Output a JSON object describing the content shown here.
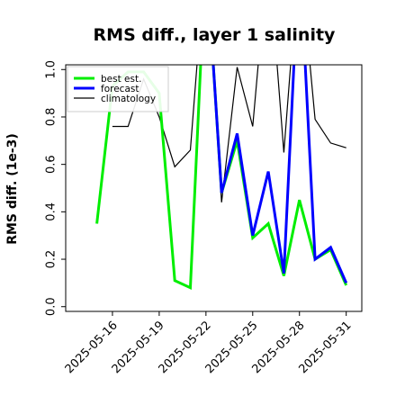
{
  "chart_data": {
    "type": "line",
    "title": "RMS diff., layer 1 salinity",
    "xlabel": "",
    "ylabel": "RMS diff. (1e-3)",
    "ylim": [
      -0.02,
      1.02
    ],
    "xlim": [
      "2025-05-13",
      "2025-06-01"
    ],
    "grid": false,
    "legend_position": "top-left",
    "y_ticks": [
      "0.0",
      "0.2",
      "0.4",
      "0.6",
      "0.8",
      "1.0"
    ],
    "x_ticks": [
      {
        "date": "2025-05-16",
        "label": "2025-05-16",
        "color": "#000000"
      },
      {
        "date": "2025-05-19",
        "label": "2025-05-19",
        "color": "#000000"
      },
      {
        "date": "2025-05-22",
        "label": "2025-05-22",
        "color": "#2e8b57"
      },
      {
        "date": "2025-05-25",
        "label": "2025-05-25",
        "color": "#000000"
      },
      {
        "date": "2025-05-28",
        "label": "2025-05-28",
        "color": "#000000"
      },
      {
        "date": "2025-05-31",
        "label": "2025-05-31",
        "color": "#000000"
      }
    ],
    "series": [
      {
        "name": "best est.",
        "color": "#00ee00",
        "line_width": 3,
        "x": [
          "2025-05-15",
          "2025-05-16",
          "2025-05-17",
          "2025-05-18",
          "2025-05-19",
          "2025-05-20",
          "2025-05-21",
          "2025-05-22",
          "2025-05-23",
          "2025-05-24",
          "2025-05-25",
          "2025-05-26",
          "2025-05-27",
          "2025-05-28",
          "2025-05-29",
          "2025-05-30",
          "2025-05-31"
        ],
        "values": [
          0.35,
          0.93,
          0.99,
          0.99,
          0.9,
          0.11,
          0.08,
          1.5,
          0.48,
          0.7,
          0.29,
          0.35,
          0.13,
          0.45,
          0.2,
          0.24,
          0.09
        ]
      },
      {
        "name": "forecast",
        "color": "#0000ff",
        "line_width": 3,
        "x": [
          "2025-05-22",
          "2025-05-23",
          "2025-05-24",
          "2025-05-25",
          "2025-05-26",
          "2025-05-27",
          "2025-05-28",
          "2025-05-29",
          "2025-05-30",
          "2025-05-31"
        ],
        "values": [
          1.5,
          0.48,
          0.73,
          0.3,
          0.57,
          0.14,
          1.5,
          0.2,
          0.25,
          0.1
        ]
      },
      {
        "name": "climatology",
        "color": "#000000",
        "line_width": 1.2,
        "x": [
          "2025-05-16",
          "2025-05-17",
          "2025-05-18",
          "2025-05-19",
          "2025-05-20",
          "2025-05-21",
          "2025-05-22",
          "2025-05-23",
          "2025-05-24",
          "2025-05-25",
          "2025-05-26",
          "2025-05-27",
          "2025-05-28",
          "2025-05-29",
          "2025-05-30",
          "2025-05-31"
        ],
        "values": [
          0.76,
          0.76,
          0.96,
          0.8,
          0.59,
          0.66,
          1.5,
          0.44,
          1.01,
          0.76,
          1.5,
          0.65,
          1.5,
          0.79,
          0.69,
          0.67
        ]
      }
    ]
  }
}
